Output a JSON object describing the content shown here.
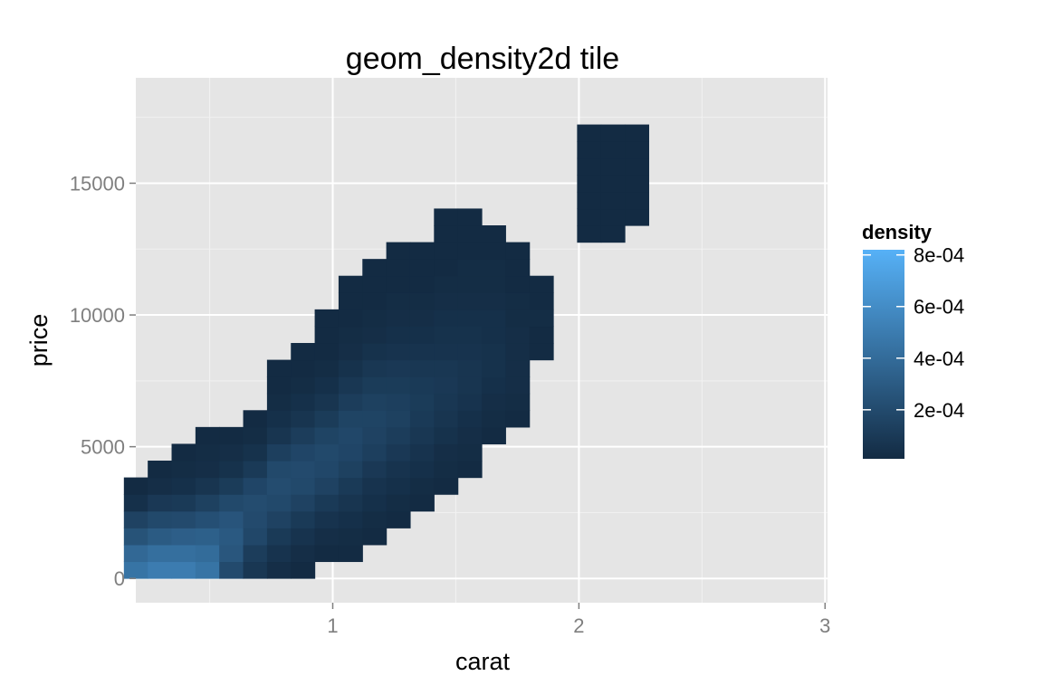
{
  "chart_data": {
    "type": "heatmap",
    "title": "geom_density2d tile",
    "xlabel": "carat",
    "ylabel": "price",
    "xlim": [
      0.2,
      3.01
    ],
    "ylim": [
      -920,
      19000
    ],
    "x_ticks": [
      1,
      2,
      3
    ],
    "x_tick_labels": [
      "1",
      "2",
      "3"
    ],
    "y_ticks": [
      0,
      5000,
      10000,
      15000
    ],
    "y_tick_labels": [
      "0",
      "5000",
      "10000",
      "15000"
    ],
    "tile_grid": {
      "x_min": 0.2,
      "x_max": 3.01,
      "x_bins": 30,
      "y_min": 326,
      "y_max": 18823,
      "y_bins": 30
    },
    "density_scale": {
      "min": 1e-05,
      "max": 0.00082,
      "low_color": "#132B43",
      "high_color": "#56B1F7"
    },
    "legend": {
      "title": "density",
      "position": "right",
      "labels": [
        "8e-04",
        "6e-04",
        "4e-04",
        "2e-04"
      ],
      "values": [
        0.0008,
        0.0006,
        0.0004,
        0.0002
      ]
    },
    "colors": {
      "panel_background": "#E5E5E5",
      "grid_major": "#FFFFFF",
      "grid_minor": "#F2F2F2",
      "tick_text": "#7F7F7F"
    },
    "tile_columns": [
      {
        "col": 0,
        "rows": [
          {
            "start": 0,
            "end": 5,
            "densities": [
              0.00045,
              0.00038,
              0.00025,
              0.00015,
              4e-05,
              1e-05
            ]
          }
        ]
      },
      {
        "col": 1,
        "rows": [
          {
            "start": 0,
            "end": 6,
            "densities": [
              0.0005,
              0.00042,
              0.0003,
              0.00019,
              9e-05,
              3e-05,
              1e-05
            ]
          }
        ]
      },
      {
        "col": 2,
        "rows": [
          {
            "start": 0,
            "end": 7,
            "densities": [
              0.0005,
              0.00042,
              0.00032,
              0.0002,
              0.0001,
              4e-05,
              2e-05,
              1e-05
            ]
          }
        ]
      },
      {
        "col": 3,
        "rows": [
          {
            "start": 0,
            "end": 8,
            "densities": [
              0.00045,
              0.0004,
              0.00033,
              0.00023,
              0.00014,
              7e-05,
              3e-05,
              2e-05,
              1e-05
            ]
          }
        ]
      },
      {
        "col": 4,
        "rows": [
          {
            "start": 0,
            "end": 8,
            "densities": [
              0.0002,
              0.00027,
              0.00029,
              0.00026,
              0.00019,
              0.00011,
              5e-05,
              3e-05,
              1e-05
            ]
          }
        ]
      },
      {
        "col": 5,
        "rows": [
          {
            "start": 0,
            "end": 9,
            "densities": [
              8e-05,
              0.00012,
              0.00018,
              0.0002,
              0.00021,
              0.00017,
              0.0001,
              5e-05,
              2e-05,
              1e-05
            ]
          }
        ]
      },
      {
        "col": 6,
        "rows": [
          {
            "start": 0,
            "end": 12,
            "densities": [
              3e-05,
              6e-05,
              0.0001,
              0.00015,
              0.00019,
              0.00021,
              0.00019,
              0.00013,
              7e-05,
              4e-05,
              2e-05,
              1e-05,
              1e-05
            ]
          }
        ]
      },
      {
        "col": 7,
        "rows": [
          {
            "start": 0,
            "end": 13,
            "densities": [
              1e-05,
              3e-05,
              6e-05,
              0.0001,
              0.00015,
              0.00019,
              0.0002,
              0.00017,
              0.00012,
              7e-05,
              4e-05,
              2e-05,
              1e-05,
              1e-05
            ]
          }
        ]
      },
      {
        "col": 8,
        "rows": [
          {
            "start": 1,
            "end": 15,
            "densities": [
              1e-05,
              3e-05,
              6e-05,
              0.0001,
              0.00015,
              0.00018,
              0.00019,
              0.00016,
              0.00011,
              7e-05,
              4e-05,
              2e-05,
              1e-05,
              1e-05,
              1e-05
            ]
          }
        ]
      },
      {
        "col": 9,
        "rows": [
          {
            "start": 1,
            "end": 17,
            "densities": [
              1e-05,
              2e-05,
              4e-05,
              7e-05,
              0.0001,
              0.00014,
              0.00017,
              0.00018,
              0.00016,
              0.00012,
              8e-05,
              5e-05,
              3e-05,
              2e-05,
              1e-05,
              1e-05,
              1e-05
            ]
          }
        ]
      },
      {
        "col": 10,
        "rows": [
          {
            "start": 2,
            "end": 18,
            "densities": [
              1e-05,
              2e-05,
              4e-05,
              6e-05,
              9e-05,
              0.00013,
              0.00015,
              0.00016,
              0.00014,
              0.00011,
              8e-05,
              5e-05,
              3e-05,
              2e-05,
              1e-05,
              1e-05,
              1e-05
            ]
          }
        ]
      },
      {
        "col": 11,
        "rows": [
          {
            "start": 3,
            "end": 19,
            "densities": [
              1e-05,
              2e-05,
              4e-05,
              6e-05,
              9e-05,
              0.00012,
              0.00014,
              0.00013,
              0.00011,
              9e-05,
              6e-05,
              4e-05,
              3e-05,
              2e-05,
              1e-05,
              1e-05,
              1e-05
            ]
          }
        ]
      },
      {
        "col": 12,
        "rows": [
          {
            "start": 4,
            "end": 19,
            "densities": [
              1e-05,
              2e-05,
              4e-05,
              6e-05,
              8e-05,
              0.0001,
              0.00011,
              0.0001,
              8e-05,
              6e-05,
              4e-05,
              3e-05,
              2e-05,
              1e-05,
              1e-05,
              1e-05
            ]
          }
        ]
      },
      {
        "col": 13,
        "rows": [
          {
            "start": 5,
            "end": 21,
            "densities": [
              1e-05,
              2e-05,
              3e-05,
              5e-05,
              7e-05,
              8e-05,
              9e-05,
              8e-05,
              6e-05,
              5e-05,
              4e-05,
              3e-05,
              2e-05,
              1e-05,
              1e-05,
              1e-05,
              1e-05
            ]
          }
        ]
      },
      {
        "col": 14,
        "rows": [
          {
            "start": 6,
            "end": 21,
            "densities": [
              1e-05,
              2e-05,
              3e-05,
              4e-05,
              6e-05,
              7e-05,
              7e-05,
              6e-05,
              5e-05,
              4e-05,
              3e-05,
              2e-05,
              2e-05,
              1e-05,
              1e-05,
              1e-05
            ]
          }
        ]
      },
      {
        "col": 15,
        "rows": [
          {
            "start": 8,
            "end": 20,
            "densities": [
              1e-05,
              2e-05,
              3e-05,
              4e-05,
              5e-05,
              5e-05,
              4e-05,
              4e-05,
              3e-05,
              2e-05,
              2e-05,
              1e-05,
              1e-05
            ]
          }
        ]
      },
      {
        "col": 16,
        "rows": [
          {
            "start": 9,
            "end": 19,
            "densities": [
              1e-05,
              2e-05,
              3e-05,
              3e-05,
              3e-05,
              3e-05,
              2e-05,
              2e-05,
              1e-05,
              1e-05,
              1e-05
            ]
          }
        ]
      },
      {
        "col": 17,
        "rows": [
          {
            "start": 13,
            "end": 17,
            "densities": [
              1e-05,
              1e-05,
              2e-05,
              1e-05,
              1e-05
            ]
          }
        ]
      },
      {
        "col": 18,
        "rows": []
      },
      {
        "col": 19,
        "rows": [
          {
            "start": 20,
            "end": 26,
            "densities": [
              1e-05,
              1e-05,
              1e-05,
              1e-05,
              1e-05,
              1e-05,
              1e-05
            ]
          }
        ]
      },
      {
        "col": 20,
        "rows": [
          {
            "start": 20,
            "end": 26,
            "densities": [
              1e-05,
              1e-05,
              1e-05,
              1e-05,
              1e-05,
              1e-05,
              1e-05
            ]
          }
        ]
      },
      {
        "col": 21,
        "rows": [
          {
            "start": 21,
            "end": 26,
            "densities": [
              1e-05,
              1e-05,
              1e-05,
              1e-05,
              1e-05,
              1e-05
            ]
          }
        ]
      }
    ]
  }
}
